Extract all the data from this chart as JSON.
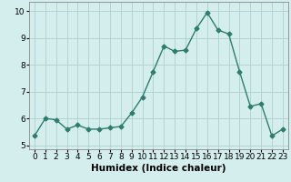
{
  "x": [
    0,
    1,
    2,
    3,
    4,
    5,
    6,
    7,
    8,
    9,
    10,
    11,
    12,
    13,
    14,
    15,
    16,
    17,
    18,
    19,
    20,
    21,
    22,
    23
  ],
  "y": [
    5.35,
    6.0,
    5.95,
    5.6,
    5.75,
    5.6,
    5.6,
    5.65,
    5.7,
    6.2,
    6.8,
    7.75,
    8.7,
    8.5,
    8.55,
    9.35,
    9.95,
    9.3,
    9.15,
    7.75,
    6.45,
    6.55,
    5.35,
    5.6
  ],
  "line_color": "#2e7d6e",
  "marker": "D",
  "marker_size": 2.5,
  "bg_color": "#d4eeee",
  "grid_color": "#b0cece",
  "xlabel": "Humidex (Indice chaleur)",
  "xlim": [
    -0.5,
    23.5
  ],
  "ylim": [
    4.85,
    10.35
  ],
  "yticks": [
    5,
    6,
    7,
    8,
    9,
    10
  ],
  "xtick_labels": [
    "0",
    "1",
    "2",
    "3",
    "4",
    "5",
    "6",
    "7",
    "8",
    "9",
    "10",
    "11",
    "12",
    "13",
    "14",
    "15",
    "16",
    "17",
    "18",
    "19",
    "20",
    "21",
    "22",
    "23"
  ],
  "xlabel_fontsize": 7.5,
  "tick_fontsize": 6.5,
  "line_width": 1.0
}
